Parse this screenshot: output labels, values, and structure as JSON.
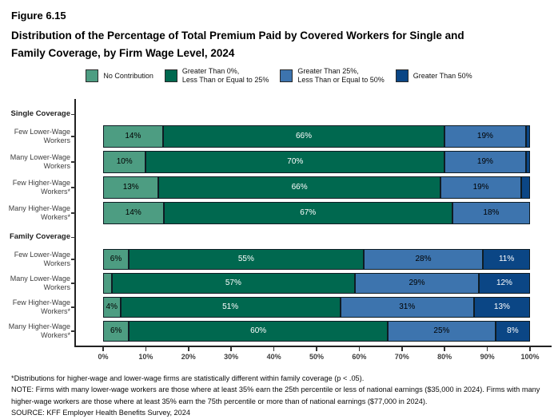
{
  "figure_label": "Figure 6.15",
  "title_lines": [
    "Distribution of the Percentage of Total Premium Paid by Covered Workers for Single and",
    "Family Coverage, by Firm Wage Level, 2024"
  ],
  "chart_data": {
    "type": "bar",
    "orientation": "horizontal",
    "stacked": true,
    "title": "Distribution of the Percentage of Total Premium Paid by Covered Workers for Single and Family Coverage, by Firm Wage Level, 2024",
    "xlim": [
      0,
      100
    ],
    "x_ticks": [
      "0%",
      "10%",
      "20%",
      "30%",
      "40%",
      "50%",
      "60%",
      "70%",
      "80%",
      "90%",
      "100%"
    ],
    "grid": false,
    "legend_position": "top",
    "series": [
      {
        "name": "No Contribution",
        "color": "#4D9D82",
        "label_color": "#000000"
      },
      {
        "name": "Greater Than 0%,\nLess Than or Equal to 25%",
        "color": "#00684F",
        "label_color": "#FFFFFF"
      },
      {
        "name": "Greater Than 25%,\nLess Than or Equal to 50%",
        "color": "#3D74AE",
        "label_color": "#000000"
      },
      {
        "name": "Greater Than 50%",
        "color": "#0B4685",
        "label_color": "#FFFFFF"
      }
    ],
    "groups": [
      {
        "label": "Single Coverage",
        "rows": [
          {
            "label": "Few Lower-Wage\nWorkers",
            "segments": [
              {
                "series": 0,
                "value": 14,
                "label": "14%"
              },
              {
                "series": 1,
                "value": 66,
                "label": "66%"
              },
              {
                "series": 2,
                "value": 19,
                "label": "19%"
              },
              {
                "series": 3,
                "value": 1,
                "label": ""
              }
            ]
          },
          {
            "label": "Many Lower-Wage\nWorkers",
            "segments": [
              {
                "series": 0,
                "value": 10,
                "label": "10%"
              },
              {
                "series": 1,
                "value": 70,
                "label": "70%"
              },
              {
                "series": 2,
                "value": 19,
                "label": "19%"
              },
              {
                "series": 3,
                "value": 1,
                "label": ""
              }
            ]
          },
          {
            "label": "Few Higher-Wage\nWorkers*",
            "segments": [
              {
                "series": 0,
                "value": 13,
                "label": "13%"
              },
              {
                "series": 1,
                "value": 66,
                "label": "66%"
              },
              {
                "series": 2,
                "value": 19,
                "label": "19%"
              },
              {
                "series": 3,
                "value": 2,
                "label": ""
              }
            ]
          },
          {
            "label": "Many Higher-Wage\nWorkers*",
            "segments": [
              {
                "series": 0,
                "value": 14,
                "label": "14%"
              },
              {
                "series": 1,
                "value": 67,
                "label": "67%"
              },
              {
                "series": 2,
                "value": 18,
                "label": "18%"
              }
            ]
          }
        ]
      },
      {
        "label": "Family Coverage",
        "rows": [
          {
            "label": "Few Lower-Wage\nWorkers",
            "segments": [
              {
                "series": 0,
                "value": 6,
                "label": "6%"
              },
              {
                "series": 1,
                "value": 55,
                "label": "55%"
              },
              {
                "series": 2,
                "value": 28,
                "label": "28%"
              },
              {
                "series": 3,
                "value": 11,
                "label": "11%"
              }
            ]
          },
          {
            "label": "Many Lower-Wage\nWorkers",
            "segments": [
              {
                "series": 0,
                "value": 2,
                "label": ""
              },
              {
                "series": 1,
                "value": 57,
                "label": "57%"
              },
              {
                "series": 2,
                "value": 29,
                "label": "29%"
              },
              {
                "series": 3,
                "value": 12,
                "label": "12%"
              }
            ]
          },
          {
            "label": "Few Higher-Wage\nWorkers*",
            "segments": [
              {
                "series": 0,
                "value": 4,
                "label": "4%"
              },
              {
                "series": 1,
                "value": 51,
                "label": "51%"
              },
              {
                "series": 2,
                "value": 31,
                "label": "31%"
              },
              {
                "series": 3,
                "value": 13,
                "label": "13%"
              }
            ]
          },
          {
            "label": "Many Higher-Wage\nWorkers*",
            "segments": [
              {
                "series": 0,
                "value": 6,
                "label": "6%"
              },
              {
                "series": 1,
                "value": 60,
                "label": "60%"
              },
              {
                "series": 2,
                "value": 25,
                "label": "25%"
              },
              {
                "series": 3,
                "value": 8,
                "label": "8%"
              }
            ]
          }
        ]
      }
    ]
  },
  "footnotes": [
    "*Distributions for higher-wage and lower-wage firms are statistically different within family coverage (p < .05).",
    "NOTE: Firms with many lower-wage workers are those where at least 35% earn the 25th percentile or less of national earnings ($35,000 in 2024). Firms with many higher-wage workers are those where at least 35% earn the 75th percentile or more than of national earnings ($77,000 in 2024).",
    "SOURCE: KFF Employer Health Benefits Survey, 2024"
  ]
}
